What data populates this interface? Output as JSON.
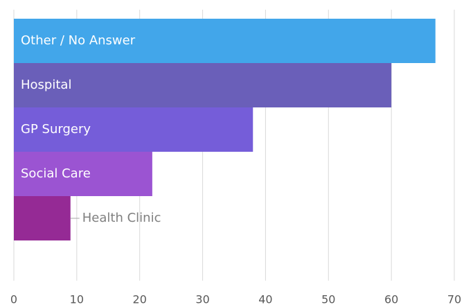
{
  "chart_data": {
    "type": "barh",
    "categories": [
      "Other / No Answer",
      "Hospital",
      "GP Surgery",
      "Social Care",
      "Health Clinic"
    ],
    "values": [
      67,
      60,
      38,
      22,
      9
    ],
    "colors": [
      "#42a6ea",
      "#6a5fb9",
      "#755dd9",
      "#9b54d2",
      "#952a95"
    ],
    "xlim": [
      0,
      70
    ],
    "xticks": [
      0,
      10,
      20,
      30,
      40,
      50,
      60,
      70
    ],
    "grid": true
  }
}
